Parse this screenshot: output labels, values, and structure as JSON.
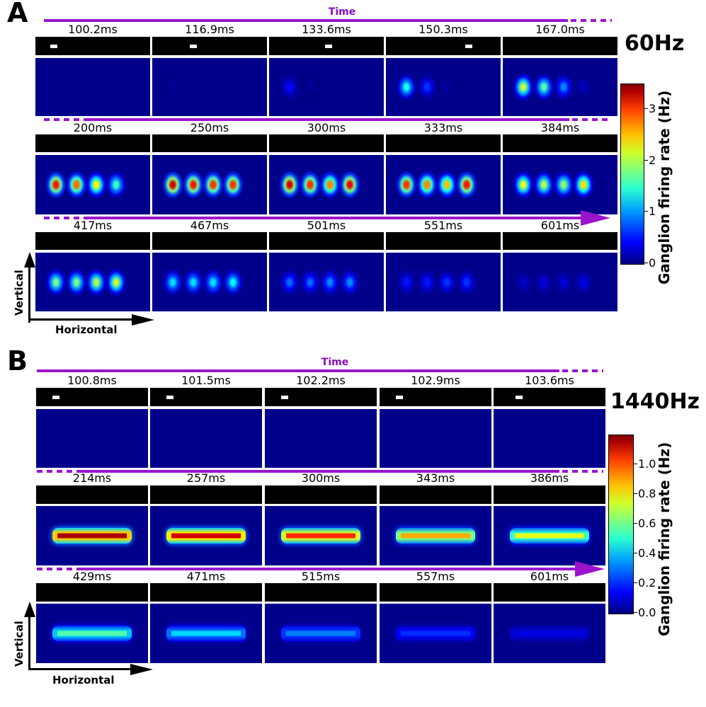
{
  "colors": {
    "accent": "#9b14cc",
    "response_bg": "#00008b"
  },
  "panels": [
    {
      "letter": "A",
      "frequency": "60Hz",
      "time_label": "Time",
      "stimulus_type": "dots",
      "colorbar": {
        "label": "Ganglion firing rate (Hz)",
        "max": 3.5,
        "ticks": [
          "0",
          "1",
          "2",
          "3"
        ],
        "tick_values": [
          0,
          1,
          2,
          3
        ]
      },
      "axes": {
        "horizontal": "Horizontal",
        "vertical": "Vertical"
      },
      "rows": [
        [
          {
            "label": "100.2ms",
            "bar": 0.16,
            "resp": []
          },
          {
            "label": "116.9ms",
            "bar": 0.36,
            "resp": [
              0.08
            ]
          },
          {
            "label": "133.6ms",
            "bar": 0.52,
            "resp": [
              0.45,
              0.08
            ]
          },
          {
            "label": "150.3ms",
            "bar": 0.72,
            "resp": [
              1.4,
              0.6,
              0.1
            ]
          },
          {
            "label": "167.0ms",
            "bar": null,
            "resp": [
              2.0,
              1.6,
              0.9,
              0.2
            ]
          }
        ],
        [
          {
            "label": "200ms",
            "bar": null,
            "resp": [
              3.0,
              2.7,
              2.2,
              1.5
            ]
          },
          {
            "label": "250ms",
            "bar": null,
            "resp": [
              3.2,
              3.0,
              2.9,
              2.9
            ]
          },
          {
            "label": "300ms",
            "bar": null,
            "resp": [
              3.2,
              2.9,
              2.6,
              3.1
            ]
          },
          {
            "label": "333ms",
            "bar": null,
            "resp": [
              2.9,
              2.6,
              2.4,
              3.0
            ]
          },
          {
            "label": "384ms",
            "bar": null,
            "resp": [
              2.1,
              1.9,
              1.8,
              2.3
            ]
          }
        ],
        [
          {
            "label": "417ms",
            "bar": null,
            "resp": [
              1.7,
              1.7,
              1.9,
              2.0
            ]
          },
          {
            "label": "467ms",
            "bar": null,
            "resp": [
              1.2,
              1.2,
              1.2,
              1.3
            ]
          },
          {
            "label": "501ms",
            "bar": null,
            "resp": [
              0.8,
              0.8,
              0.9,
              0.9
            ]
          },
          {
            "label": "551ms",
            "bar": null,
            "resp": [
              0.5,
              0.5,
              0.6,
              0.6
            ]
          },
          {
            "label": "601ms",
            "bar": null,
            "resp": [
              0.25,
              0.3,
              0.3,
              0.35
            ]
          }
        ]
      ]
    },
    {
      "letter": "B",
      "frequency": "1440Hz",
      "time_label": "Time",
      "stimulus_type": "line",
      "colorbar": {
        "label": "Ganglion firing rate (Hz)",
        "max": 1.2,
        "ticks": [
          "0.0",
          "0.2",
          "0.4",
          "0.6",
          "0.8",
          "1.0"
        ],
        "tick_values": [
          0,
          0.2,
          0.4,
          0.6,
          0.8,
          1.0
        ]
      },
      "axes": {
        "horizontal": "Horizontal",
        "vertical": "Vertical"
      },
      "rows": [
        [
          {
            "label": "100.8ms",
            "bar": 0.18,
            "resp": 0
          },
          {
            "label": "101.5ms",
            "bar": 0.18,
            "resp": 0
          },
          {
            "label": "102.2ms",
            "bar": 0.18,
            "resp": 0
          },
          {
            "label": "102.9ms",
            "bar": 0.18,
            "resp": 0
          },
          {
            "label": "103.6ms",
            "bar": 0.23,
            "resp": 0
          }
        ],
        [
          {
            "label": "214ms",
            "bar": null,
            "resp": 1.15
          },
          {
            "label": "257ms",
            "bar": null,
            "resp": 1.1
          },
          {
            "label": "300ms",
            "bar": null,
            "resp": 1.0
          },
          {
            "label": "343ms",
            "bar": null,
            "resp": 0.85
          },
          {
            "label": "386ms",
            "bar": null,
            "resp": 0.72
          }
        ],
        [
          {
            "label": "429ms",
            "bar": null,
            "resp": 0.55
          },
          {
            "label": "471ms",
            "bar": null,
            "resp": 0.4
          },
          {
            "label": "515ms",
            "bar": null,
            "resp": 0.3
          },
          {
            "label": "557ms",
            "bar": null,
            "resp": 0.2
          },
          {
            "label": "601ms",
            "bar": null,
            "resp": 0.12
          }
        ]
      ]
    }
  ]
}
